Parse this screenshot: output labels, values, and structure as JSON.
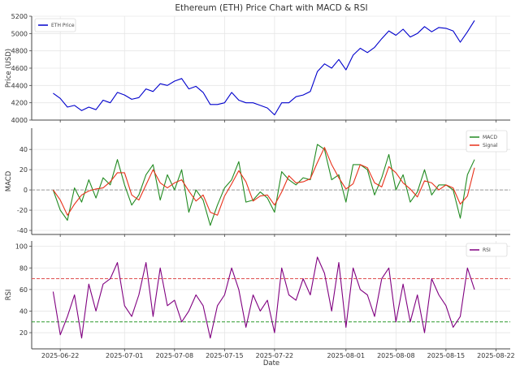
{
  "chart_data": {
    "title": "Ethereum (ETH) Price Chart with MACD & RSI",
    "xlabel": "Date",
    "xlim": [
      "2025-06-18",
      "2025-08-24"
    ],
    "x_ticks": [
      "2025-06-22",
      "2025-07-01",
      "2025-07-08",
      "2025-07-15",
      "2025-07-22",
      "2025-08-01",
      "2025-08-08",
      "2025-08-15",
      "2025-08-22"
    ],
    "x_start": "2025-06-21",
    "x_step": "1 day",
    "grid": true,
    "panels": [
      {
        "type": "line",
        "ylabel": "Price (USD)",
        "ylim": [
          4000,
          5200
        ],
        "y_ticks": [
          4000,
          4200,
          4400,
          4600,
          4800,
          5000,
          5200
        ],
        "legend": "top-left",
        "series": [
          {
            "name": "ETH Price",
            "color": "#0000cc",
            "values": [
              4310,
              4250,
              4150,
              4170,
              4110,
              4150,
              4120,
              4230,
              4200,
              4320,
              4290,
              4240,
              4260,
              4360,
              4330,
              4420,
              4400,
              4450,
              4480,
              4360,
              4390,
              4320,
              4180,
              4180,
              4200,
              4320,
              4230,
              4200,
              4200,
              4170,
              4140,
              4060,
              4200,
              4200,
              4270,
              4290,
              4330,
              4560,
              4650,
              4600,
              4700,
              4580,
              4750,
              4830,
              4780,
              4840,
              4940,
              5030,
              4980,
              5050,
              4960,
              5000,
              5080,
              5020,
              5070,
              5060,
              5030,
              4900,
              5020,
              5150
            ]
          }
        ]
      },
      {
        "type": "line",
        "ylabel": "MACD",
        "ylim": [
          -44,
          61
        ],
        "y_ticks": [
          -40,
          -20,
          0,
          20,
          40
        ],
        "legend": "top-right",
        "hlines": [
          {
            "y": 0,
            "color": "#999999",
            "style": "dashed"
          }
        ],
        "series": [
          {
            "name": "MACD",
            "color": "#228b22",
            "values": [
              0,
              -20,
              -30,
              2,
              -12,
              10,
              -8,
              12,
              5,
              30,
              5,
              -15,
              -5,
              15,
              25,
              -10,
              15,
              0,
              20,
              -22,
              0,
              -10,
              -35,
              -15,
              2,
              10,
              28,
              -12,
              -10,
              -2,
              -8,
              -22,
              18,
              10,
              5,
              12,
              10,
              45,
              40,
              10,
              15,
              -12,
              25,
              25,
              20,
              -5,
              12,
              35,
              0,
              15,
              -12,
              -2,
              20,
              -5,
              5,
              5,
              0,
              -28,
              15,
              30
            ]
          },
          {
            "name": "Signal",
            "color": "#e8311a",
            "values": [
              0,
              -10,
              -25,
              -14,
              -5,
              -1,
              1,
              2,
              8,
              17,
              17,
              -5,
              -10,
              5,
              20,
              7,
              2,
              7,
              10,
              -1,
              -11,
              -5,
              -22,
              -25,
              -6,
              6,
              19,
              8,
              -11,
              -6,
              -5,
              -15,
              -2,
              14,
              7,
              8,
              11,
              27,
              42,
              25,
              12,
              1,
              6,
              25,
              22,
              7,
              3,
              23,
              17,
              7,
              1,
              -7,
              9,
              7,
              0,
              5,
              2,
              -14,
              -6,
              22
            ]
          }
        ]
      },
      {
        "type": "line",
        "ylabel": "RSI",
        "ylim": [
          5,
          105
        ],
        "y_ticks": [
          20,
          40,
          60,
          80,
          100
        ],
        "legend": "top-right",
        "hlines": [
          {
            "y": 70,
            "color": "#e05050",
            "style": "dashed"
          },
          {
            "y": 30,
            "color": "#2e9a2e",
            "style": "dashed"
          }
        ],
        "series": [
          {
            "name": "RSI",
            "color": "#800080",
            "values": [
              58,
              18,
              35,
              55,
              15,
              65,
              40,
              65,
              70,
              85,
              45,
              35,
              55,
              85,
              35,
              80,
              45,
              50,
              30,
              40,
              55,
              45,
              15,
              45,
              55,
              80,
              60,
              25,
              55,
              40,
              50,
              20,
              80,
              55,
              50,
              70,
              55,
              90,
              75,
              40,
              85,
              25,
              80,
              60,
              55,
              35,
              70,
              80,
              30,
              65,
              30,
              55,
              20,
              70,
              55,
              45,
              25,
              35,
              80,
              60
            ]
          }
        ]
      }
    ]
  }
}
